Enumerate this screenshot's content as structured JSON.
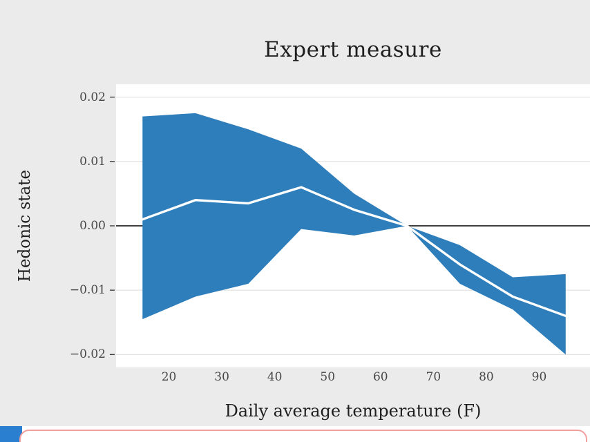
{
  "page": {
    "figure_background": "#ebebeb"
  },
  "chart_data": {
    "type": "line",
    "title": "Expert measure",
    "xlabel": "Daily average temperature (F)",
    "ylabel": "Hedonic state",
    "x": [
      15,
      25,
      35,
      45,
      55,
      65,
      75,
      85,
      95
    ],
    "series": [
      {
        "name": "estimate",
        "values": [
          0.001,
          0.004,
          0.0035,
          0.006,
          0.0025,
          0.0,
          -0.006,
          -0.011,
          -0.014
        ]
      },
      {
        "name": "upper_ci",
        "values": [
          0.017,
          0.0175,
          0.015,
          0.012,
          0.005,
          0.0,
          -0.003,
          -0.008,
          -0.0075
        ]
      },
      {
        "name": "lower_ci",
        "values": [
          -0.0145,
          -0.011,
          -0.009,
          -0.0005,
          -0.0015,
          0.0,
          -0.009,
          -0.013,
          -0.02
        ]
      }
    ],
    "xticks": [
      {
        "value": 20,
        "label": "20"
      },
      {
        "value": 30,
        "label": "30"
      },
      {
        "value": 40,
        "label": "40"
      },
      {
        "value": 50,
        "label": "50"
      },
      {
        "value": 60,
        "label": "60"
      },
      {
        "value": 70,
        "label": "70"
      },
      {
        "value": 80,
        "label": "80"
      },
      {
        "value": 90,
        "label": "90"
      }
    ],
    "yticks": [
      {
        "value": 0.02,
        "label": "0.02"
      },
      {
        "value": 0.01,
        "label": "0.01"
      },
      {
        "value": 0.0,
        "label": "0.00"
      },
      {
        "value": -0.01,
        "label": "−0.01"
      },
      {
        "value": -0.02,
        "label": "−0.02"
      }
    ],
    "xlim": [
      10,
      99.6
    ],
    "ylim": [
      -0.022,
      0.022
    ],
    "zero_line_y": 0,
    "grid": "horizontal-major-only",
    "legend": "none",
    "colors": {
      "band": "#2e7ebc",
      "estimate_line": "#ffffff",
      "zero_line": "#000000",
      "grid": "#e4e4e4",
      "panel": "#ffffff",
      "tick_mark": "#3d3d3d"
    }
  },
  "footer": {
    "accent_blue": "#2a7fd0",
    "card_border_pink": "#f2a09e",
    "card_background": "#ffffff"
  }
}
